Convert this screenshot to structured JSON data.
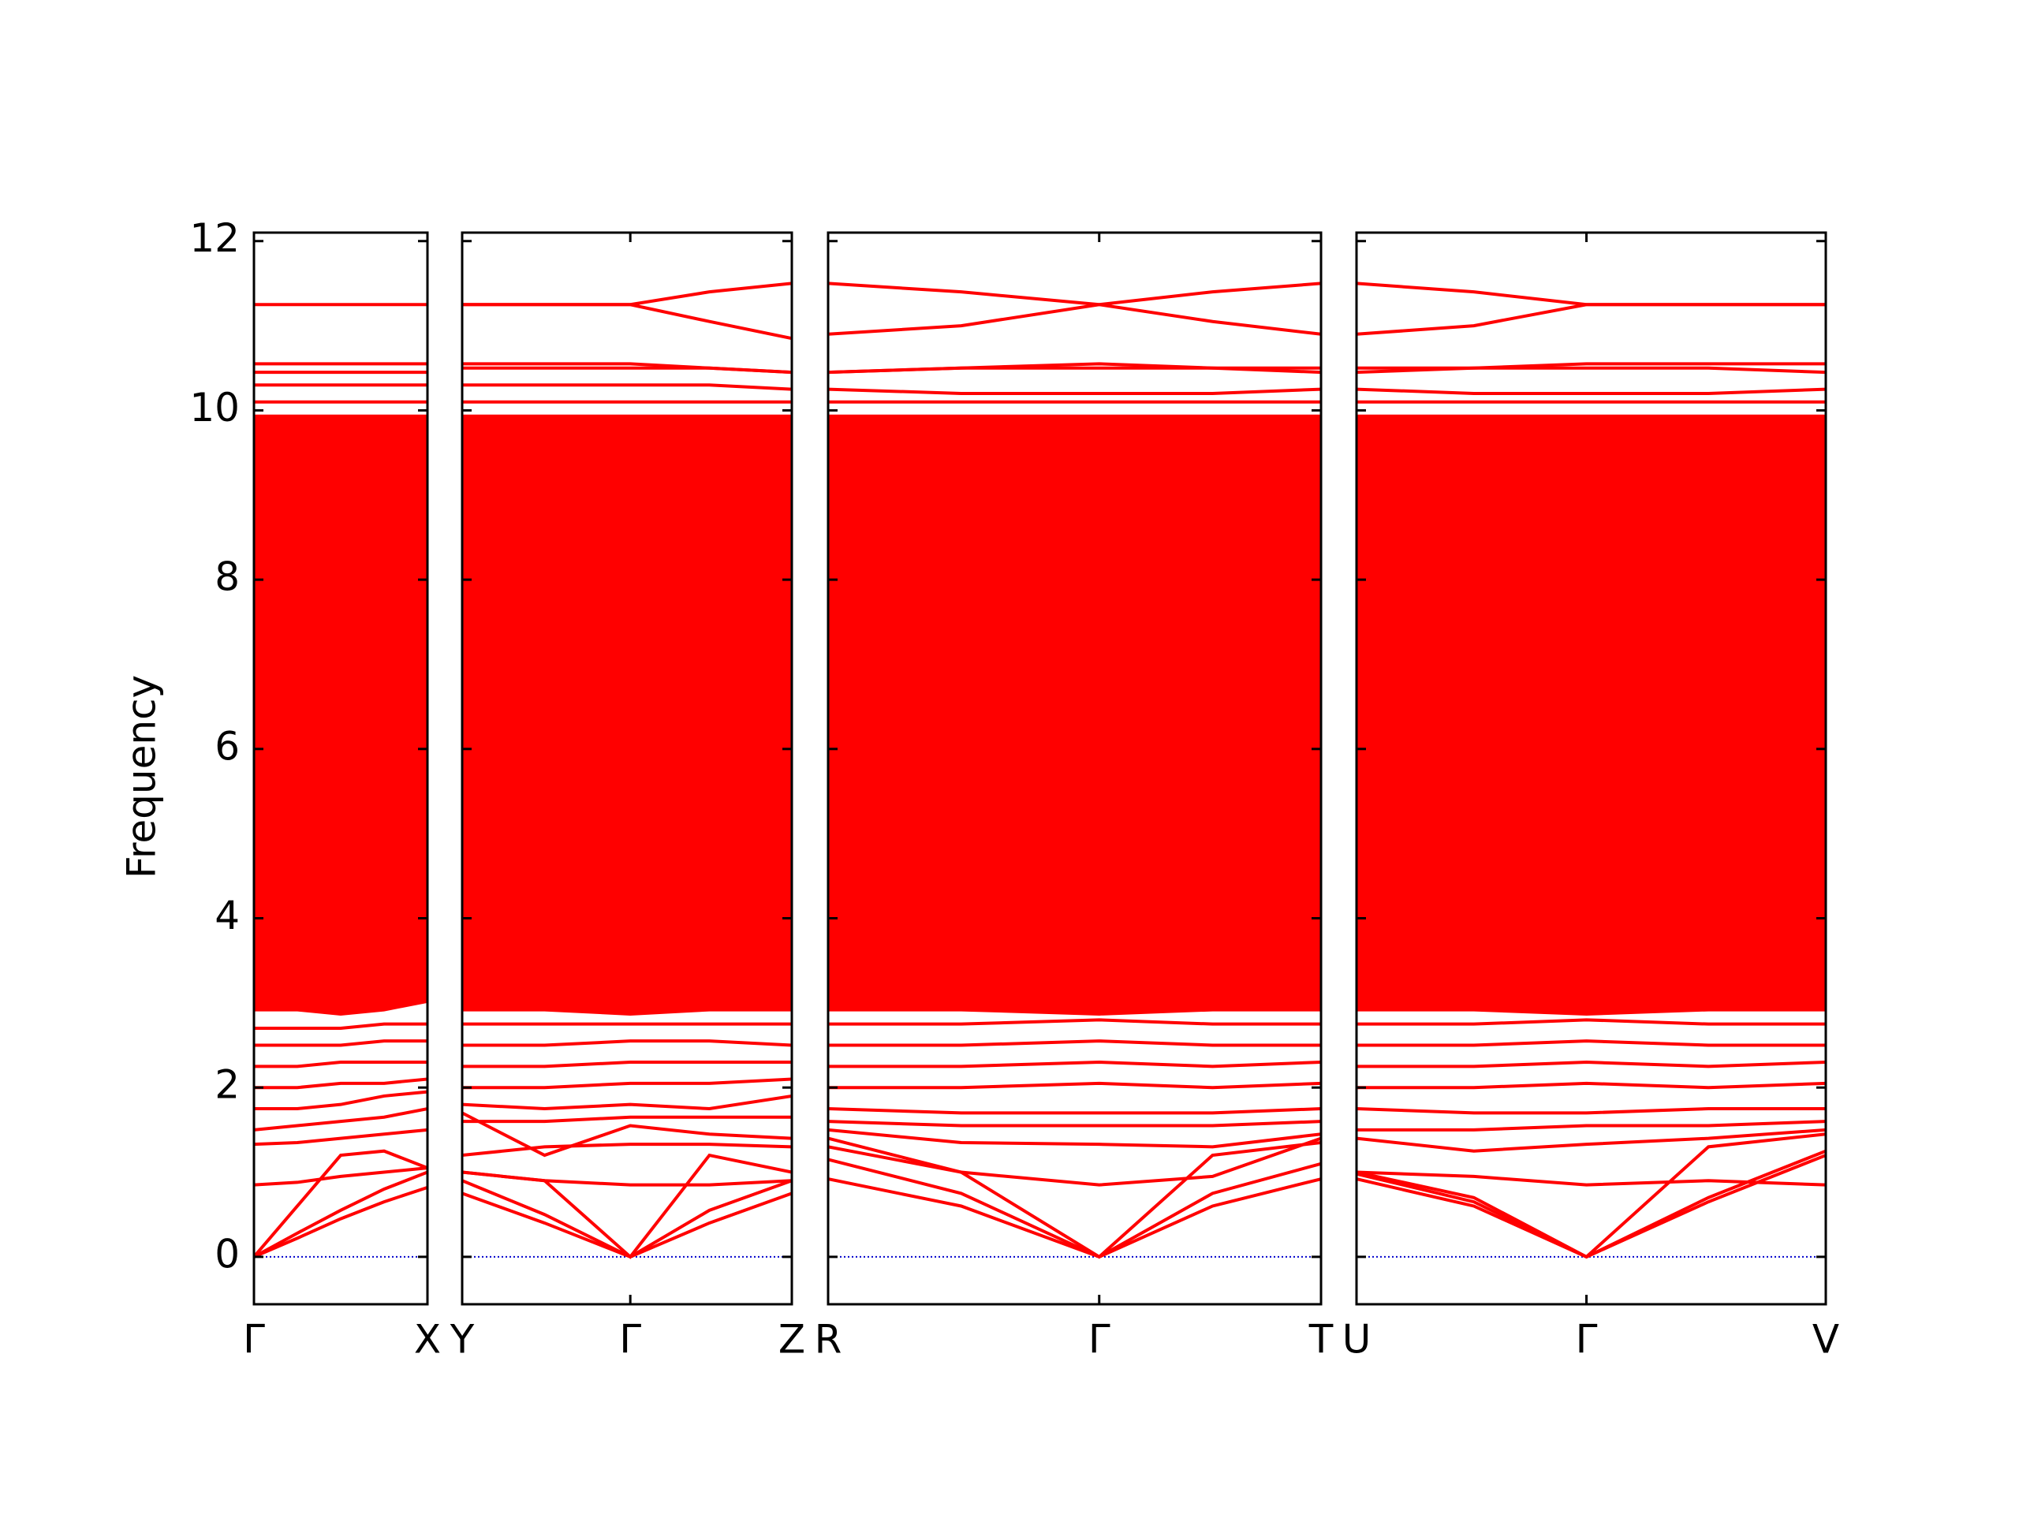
{
  "chart_data": [
    {
      "type": "line",
      "y_label": "Frequency",
      "ylim": [
        -0.56,
        12.1
      ],
      "yticks": [
        0,
        2,
        4,
        6,
        8,
        10,
        12
      ],
      "x": [
        0,
        0.25,
        0.5,
        0.75,
        1
      ],
      "xlim": [
        0,
        1
      ],
      "xticks": [
        {
          "value": 0,
          "label": "Γ"
        },
        {
          "value": 1,
          "label": "X"
        }
      ],
      "series": [
        {
          "kind": "area",
          "color": "#ff0000",
          "values": [
            9.95,
            9.95,
            9.95,
            9.95,
            9.95
          ],
          "lower": [
            2.9,
            2.9,
            2.85,
            2.9,
            3.0
          ]
        },
        {
          "color": "#0000cc",
          "linestyle": "dotted",
          "values": [
            0,
            0,
            0,
            0,
            0
          ]
        },
        {
          "color": "#ff0000",
          "values": [
            0,
            0.22,
            0.45,
            0.65,
            0.82
          ]
        },
        {
          "color": "#ff0000",
          "values": [
            0,
            0.28,
            0.55,
            0.8,
            1.0
          ]
        },
        {
          "color": "#ff0000",
          "values": [
            0,
            0.6,
            1.2,
            1.25,
            1.05
          ]
        },
        {
          "color": "#ff0000",
          "values": [
            0.85,
            0.88,
            0.95,
            1.0,
            1.05
          ]
        },
        {
          "color": "#ff0000",
          "values": [
            1.33,
            1.35,
            1.4,
            1.45,
            1.5
          ]
        },
        {
          "color": "#ff0000",
          "values": [
            1.5,
            1.55,
            1.6,
            1.65,
            1.75
          ]
        },
        {
          "color": "#ff0000",
          "values": [
            1.75,
            1.75,
            1.8,
            1.9,
            1.95
          ]
        },
        {
          "color": "#ff0000",
          "values": [
            2.0,
            2.0,
            2.05,
            2.05,
            2.1
          ]
        },
        {
          "color": "#ff0000",
          "values": [
            2.25,
            2.25,
            2.3,
            2.3,
            2.3
          ]
        },
        {
          "color": "#ff0000",
          "values": [
            2.5,
            2.5,
            2.5,
            2.55,
            2.55
          ]
        },
        {
          "color": "#ff0000",
          "values": [
            2.7,
            2.7,
            2.7,
            2.75,
            2.75
          ]
        },
        {
          "color": "#ff0000",
          "values": [
            10.1,
            10.1,
            10.1,
            10.1,
            10.1
          ]
        },
        {
          "color": "#ff0000",
          "values": [
            10.3,
            10.3,
            10.3,
            10.3,
            10.3
          ]
        },
        {
          "color": "#ff0000",
          "values": [
            10.45,
            10.45,
            10.45,
            10.45,
            10.45
          ]
        },
        {
          "color": "#ff0000",
          "values": [
            10.55,
            10.55,
            10.55,
            10.55,
            10.55
          ]
        },
        {
          "color": "#ff0000",
          "values": [
            11.25,
            11.25,
            11.25,
            11.25,
            11.25
          ]
        }
      ]
    },
    {
      "type": "line",
      "ylim": [
        -0.56,
        12.1
      ],
      "x": [
        0,
        0.25,
        0.51,
        0.75,
        1
      ],
      "xlim": [
        0,
        1
      ],
      "xticks": [
        {
          "value": 0,
          "label": "Y"
        },
        {
          "value": 0.51,
          "label": "Γ"
        },
        {
          "value": 1,
          "label": "Z"
        }
      ],
      "series": [
        {
          "kind": "area",
          "color": "#ff0000",
          "values": [
            9.95,
            9.95,
            9.95,
            9.95,
            9.95
          ],
          "lower": [
            2.9,
            2.9,
            2.85,
            2.9,
            2.9
          ]
        },
        {
          "color": "#0000cc",
          "linestyle": "dotted",
          "values": [
            0,
            0,
            0,
            0,
            0
          ]
        },
        {
          "color": "#ff0000",
          "values": [
            0.75,
            0.4,
            0,
            0.4,
            0.75
          ]
        },
        {
          "color": "#ff0000",
          "values": [
            0.9,
            0.5,
            0,
            0.55,
            0.9
          ]
        },
        {
          "color": "#ff0000",
          "values": [
            1.0,
            0.9,
            0,
            1.2,
            1.0
          ]
        },
        {
          "color": "#ff0000",
          "values": [
            1.0,
            0.9,
            0.85,
            0.85,
            0.9
          ]
        },
        {
          "color": "#ff0000",
          "values": [
            1.2,
            1.3,
            1.33,
            1.33,
            1.3
          ]
        },
        {
          "color": "#ff0000",
          "values": [
            1.7,
            1.2,
            1.55,
            1.45,
            1.4
          ]
        },
        {
          "color": "#ff0000",
          "values": [
            1.6,
            1.6,
            1.65,
            1.65,
            1.65
          ]
        },
        {
          "color": "#ff0000",
          "values": [
            1.8,
            1.75,
            1.8,
            1.75,
            1.9
          ]
        },
        {
          "color": "#ff0000",
          "values": [
            2.0,
            2.0,
            2.05,
            2.05,
            2.1
          ]
        },
        {
          "color": "#ff0000",
          "values": [
            2.25,
            2.25,
            2.3,
            2.3,
            2.3
          ]
        },
        {
          "color": "#ff0000",
          "values": [
            2.5,
            2.5,
            2.55,
            2.55,
            2.5
          ]
        },
        {
          "color": "#ff0000",
          "values": [
            2.75,
            2.75,
            2.75,
            2.75,
            2.75
          ]
        },
        {
          "color": "#ff0000",
          "values": [
            10.1,
            10.1,
            10.1,
            10.1,
            10.1
          ]
        },
        {
          "color": "#ff0000",
          "values": [
            10.3,
            10.3,
            10.3,
            10.3,
            10.25
          ]
        },
        {
          "color": "#ff0000",
          "values": [
            10.5,
            10.5,
            10.5,
            10.5,
            10.45
          ]
        },
        {
          "color": "#ff0000",
          "values": [
            10.55,
            10.55,
            10.55,
            10.5,
            10.45
          ]
        },
        {
          "color": "#ff0000",
          "values": [
            11.25,
            11.25,
            11.25,
            11.4,
            11.5
          ]
        },
        {
          "color": "#ff0000",
          "values": [
            11.25,
            11.25,
            11.25,
            11.05,
            10.85
          ]
        }
      ]
    },
    {
      "type": "line",
      "ylim": [
        -0.56,
        12.1
      ],
      "x": [
        0,
        0.27,
        0.55,
        0.78,
        1
      ],
      "xlim": [
        0,
        1
      ],
      "xticks": [
        {
          "value": 0,
          "label": "R"
        },
        {
          "value": 0.55,
          "label": "Γ"
        },
        {
          "value": 1,
          "label": "T"
        }
      ],
      "series": [
        {
          "kind": "area",
          "color": "#ff0000",
          "values": [
            9.95,
            9.95,
            9.95,
            9.95,
            9.95
          ],
          "lower": [
            2.9,
            2.9,
            2.85,
            2.9,
            2.9
          ]
        },
        {
          "color": "#0000cc",
          "linestyle": "dotted",
          "values": [
            0,
            0,
            0,
            0,
            0
          ]
        },
        {
          "color": "#ff0000",
          "values": [
            0.92,
            0.6,
            0,
            0.6,
            0.92
          ]
        },
        {
          "color": "#ff0000",
          "values": [
            1.15,
            0.75,
            0,
            0.75,
            1.1
          ]
        },
        {
          "color": "#ff0000",
          "values": [
            1.3,
            1.0,
            0,
            1.2,
            1.35
          ]
        },
        {
          "color": "#ff0000",
          "values": [
            1.4,
            1.0,
            0.85,
            0.95,
            1.4
          ]
        },
        {
          "color": "#ff0000",
          "values": [
            1.5,
            1.35,
            1.33,
            1.3,
            1.45
          ]
        },
        {
          "color": "#ff0000",
          "values": [
            1.6,
            1.55,
            1.55,
            1.55,
            1.6
          ]
        },
        {
          "color": "#ff0000",
          "values": [
            1.75,
            1.7,
            1.7,
            1.7,
            1.75
          ]
        },
        {
          "color": "#ff0000",
          "values": [
            2.0,
            2.0,
            2.05,
            2.0,
            2.05
          ]
        },
        {
          "color": "#ff0000",
          "values": [
            2.25,
            2.25,
            2.3,
            2.25,
            2.3
          ]
        },
        {
          "color": "#ff0000",
          "values": [
            2.5,
            2.5,
            2.55,
            2.5,
            2.5
          ]
        },
        {
          "color": "#ff0000",
          "values": [
            2.75,
            2.75,
            2.8,
            2.75,
            2.75
          ]
        },
        {
          "color": "#ff0000",
          "values": [
            10.1,
            10.1,
            10.1,
            10.1,
            10.1
          ]
        },
        {
          "color": "#ff0000",
          "values": [
            10.25,
            10.2,
            10.2,
            10.2,
            10.25
          ]
        },
        {
          "color": "#ff0000",
          "values": [
            10.45,
            10.5,
            10.5,
            10.5,
            10.45
          ]
        },
        {
          "color": "#ff0000",
          "values": [
            10.45,
            10.5,
            10.55,
            10.5,
            10.5
          ]
        },
        {
          "color": "#ff0000",
          "values": [
            11.5,
            11.4,
            11.25,
            11.4,
            11.5
          ]
        },
        {
          "color": "#ff0000",
          "values": [
            10.9,
            11.0,
            11.25,
            11.05,
            10.9
          ]
        }
      ]
    },
    {
      "type": "line",
      "ylim": [
        -0.56,
        12.1
      ],
      "x": [
        0,
        0.25,
        0.49,
        0.75,
        1
      ],
      "xlim": [
        0,
        1
      ],
      "xticks": [
        {
          "value": 0,
          "label": "U"
        },
        {
          "value": 0.49,
          "label": "Γ"
        },
        {
          "value": 1,
          "label": "V"
        }
      ],
      "series": [
        {
          "kind": "area",
          "color": "#ff0000",
          "values": [
            9.95,
            9.95,
            9.95,
            9.95,
            9.95
          ],
          "lower": [
            2.9,
            2.9,
            2.85,
            2.9,
            2.9
          ]
        },
        {
          "color": "#0000cc",
          "linestyle": "dotted",
          "values": [
            0,
            0,
            0,
            0,
            0
          ]
        },
        {
          "color": "#ff0000",
          "values": [
            0.92,
            0.6,
            0,
            0.65,
            1.2
          ]
        },
        {
          "color": "#ff0000",
          "values": [
            0.98,
            0.65,
            0,
            0.7,
            1.25
          ]
        },
        {
          "color": "#ff0000",
          "values": [
            1.0,
            0.7,
            0,
            1.3,
            1.45
          ]
        },
        {
          "color": "#ff0000",
          "values": [
            1.0,
            0.95,
            0.85,
            0.9,
            0.85
          ]
        },
        {
          "color": "#ff0000",
          "values": [
            1.4,
            1.25,
            1.33,
            1.4,
            1.5
          ]
        },
        {
          "color": "#ff0000",
          "values": [
            1.5,
            1.5,
            1.55,
            1.55,
            1.6
          ]
        },
        {
          "color": "#ff0000",
          "values": [
            1.75,
            1.7,
            1.7,
            1.75,
            1.75
          ]
        },
        {
          "color": "#ff0000",
          "values": [
            2.0,
            2.0,
            2.05,
            2.0,
            2.05
          ]
        },
        {
          "color": "#ff0000",
          "values": [
            2.25,
            2.25,
            2.3,
            2.25,
            2.3
          ]
        },
        {
          "color": "#ff0000",
          "values": [
            2.5,
            2.5,
            2.55,
            2.5,
            2.5
          ]
        },
        {
          "color": "#ff0000",
          "values": [
            2.75,
            2.75,
            2.8,
            2.75,
            2.75
          ]
        },
        {
          "color": "#ff0000",
          "values": [
            10.1,
            10.1,
            10.1,
            10.1,
            10.1
          ]
        },
        {
          "color": "#ff0000",
          "values": [
            10.25,
            10.2,
            10.2,
            10.2,
            10.25
          ]
        },
        {
          "color": "#ff0000",
          "values": [
            10.45,
            10.5,
            10.5,
            10.5,
            10.45
          ]
        },
        {
          "color": "#ff0000",
          "values": [
            10.5,
            10.5,
            10.55,
            10.55,
            10.55
          ]
        },
        {
          "color": "#ff0000",
          "values": [
            11.5,
            11.4,
            11.25,
            11.25,
            11.25
          ]
        },
        {
          "color": "#ff0000",
          "values": [
            10.9,
            11.0,
            11.25,
            11.25,
            11.25
          ]
        }
      ]
    }
  ]
}
